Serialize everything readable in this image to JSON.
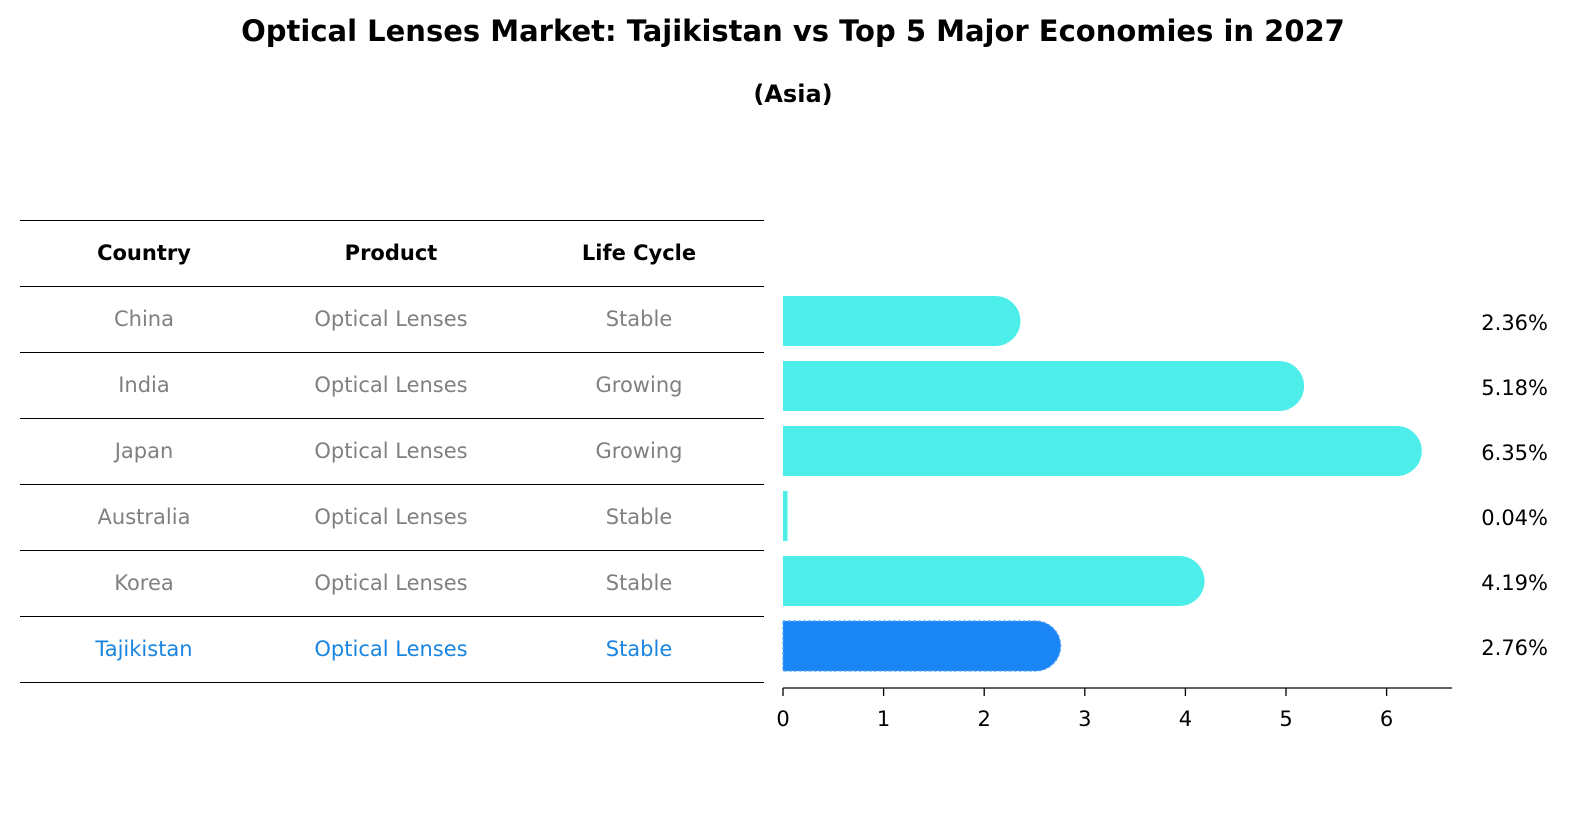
{
  "title": "Optical Lenses Market: Tajikistan vs Top 5 Major Economies in 2027",
  "subtitle": "(Asia)",
  "table": {
    "headers": [
      "Country",
      "Product",
      "Life Cycle"
    ],
    "rows": [
      {
        "country": "China",
        "product": "Optical Lenses",
        "life_cycle": "Stable"
      },
      {
        "country": "India",
        "product": "Optical Lenses",
        "life_cycle": "Growing"
      },
      {
        "country": "Japan",
        "product": "Optical Lenses",
        "life_cycle": "Growing"
      },
      {
        "country": "Australia",
        "product": "Optical Lenses",
        "life_cycle": "Stable"
      },
      {
        "country": "Korea",
        "product": "Optical Lenses",
        "life_cycle": "Stable"
      },
      {
        "country": "Tajikistan",
        "product": "Optical Lenses",
        "life_cycle": "Stable"
      }
    ],
    "highlight_row": 5
  },
  "colors": {
    "bar": "#4deeea",
    "highlight_bar": "#1a85f5",
    "highlight_text": "#1a85e0",
    "muted_text": "#808080"
  },
  "chart_data": {
    "type": "bar",
    "orientation": "horizontal",
    "categories": [
      "China",
      "India",
      "Japan",
      "Australia",
      "Korea",
      "Tajikistan"
    ],
    "values": [
      2.36,
      5.18,
      6.35,
      0.04,
      4.19,
      2.76
    ],
    "value_labels": [
      "2.36%",
      "5.18%",
      "6.35%",
      "0.04%",
      "4.19%",
      "2.76%"
    ],
    "xlim": [
      0,
      6.6
    ],
    "xticks": [
      0,
      1,
      2,
      3,
      4,
      5,
      6
    ],
    "grid": false,
    "highlight_index": 5
  }
}
